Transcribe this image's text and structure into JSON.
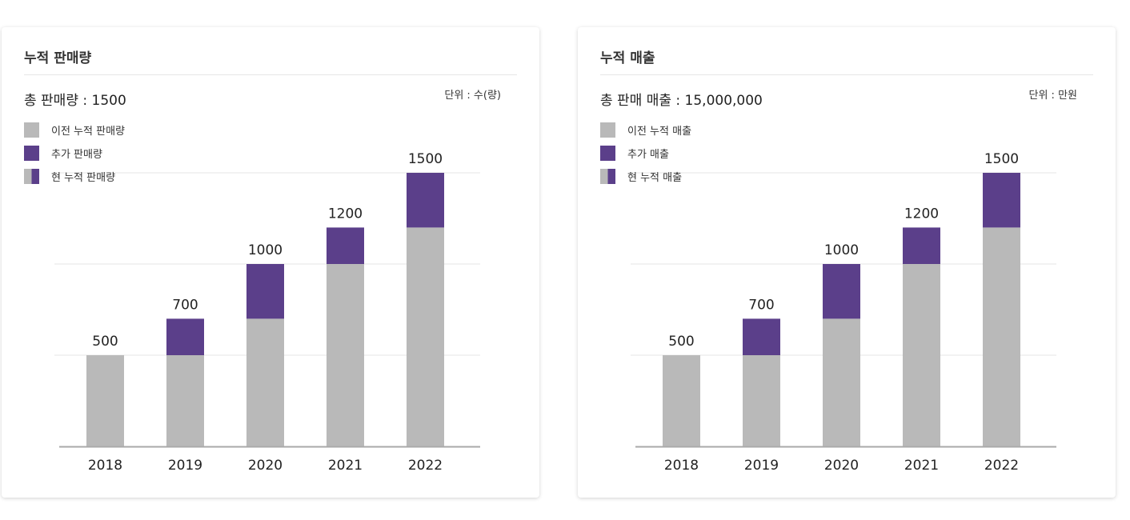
{
  "colors": {
    "previous": "#b9b9b9",
    "added": "#5b3f8a",
    "grid": "#e6e6e6",
    "axis": "#aaaaaa"
  },
  "legend_icons": {
    "previous": "gray-square",
    "added": "purple-square",
    "current": "gray-purple-split-square"
  },
  "panels": [
    {
      "title": "누적 판매량",
      "total": "총 판매량 : 1500",
      "unit": "단위 : 수(량)",
      "legend": [
        "이전 누적 판매량",
        "추가 판매량",
        "현 누적 판매량"
      ]
    },
    {
      "title": "누적 매출",
      "total": "총 판매 매출 : 15,000,000",
      "unit": "단위 : 만원",
      "legend": [
        "이전 누적 매출",
        "추가 매출",
        "현 누적 매출"
      ]
    }
  ],
  "chart_data": [
    {
      "type": "bar",
      "stacked": true,
      "title": "누적 판매량",
      "categories": [
        "2018",
        "2019",
        "2020",
        "2021",
        "2022"
      ],
      "series": [
        {
          "name": "이전 누적 판매량",
          "values": [
            500,
            500,
            700,
            1000,
            1200
          ]
        },
        {
          "name": "추가 판매량",
          "values": [
            0,
            200,
            300,
            200,
            300
          ]
        }
      ],
      "totals": [
        500,
        700,
        1000,
        1200,
        1500
      ],
      "data_labels": [
        "500",
        "700",
        "1000",
        "1200",
        "1500"
      ],
      "ylim": [
        0,
        1500
      ],
      "gridlines": [
        500,
        1000,
        1500
      ],
      "grid": true,
      "legend_position": "top-left"
    },
    {
      "type": "bar",
      "stacked": true,
      "title": "누적 매출",
      "categories": [
        "2018",
        "2019",
        "2020",
        "2021",
        "2022"
      ],
      "series": [
        {
          "name": "이전 누적 매출",
          "values": [
            500,
            500,
            700,
            1000,
            1200
          ]
        },
        {
          "name": "추가 매출",
          "values": [
            0,
            200,
            300,
            200,
            300
          ]
        }
      ],
      "totals": [
        500,
        700,
        1000,
        1200,
        1500
      ],
      "data_labels": [
        "500",
        "700",
        "1000",
        "1200",
        "1500"
      ],
      "ylim": [
        0,
        1500
      ],
      "gridlines": [
        500,
        1000,
        1500
      ],
      "grid": true,
      "legend_position": "top-left"
    }
  ]
}
